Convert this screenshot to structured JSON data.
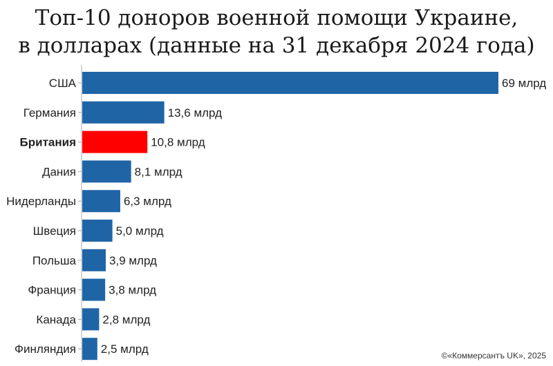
{
  "chart_data": {
    "type": "bar",
    "orientation": "horizontal",
    "title_line1": "Топ-10 доноров военной помощи Украине,",
    "title_line2": "в долларах (данные на 31 декабря 2024 года)",
    "categories": [
      "США",
      "Германия",
      "Британия",
      "Дания",
      "Нидерланды",
      "Швеция",
      "Польша",
      "Франция",
      "Канада",
      "Финляндия"
    ],
    "values": [
      69,
      13.6,
      10.8,
      8.1,
      6.3,
      5.0,
      3.9,
      3.8,
      2.8,
      2.5
    ],
    "value_labels": [
      "69 млрд",
      "13,6 млрд",
      "10,8 млрд",
      "8,1 млрд",
      "6,3 млрд",
      "5,0 млрд",
      "3,9 млрд",
      "3,8 млрд",
      "2,8 млрд",
      "2,5 млрд"
    ],
    "highlight_index": 2,
    "colors": {
      "default": "#1f65a6",
      "highlight": "#ff0000",
      "axis": "#aaaaaa"
    },
    "xlim": [
      0,
      69
    ],
    "grid": false,
    "credit": "©«Коммерсантъ UK», 2025"
  }
}
